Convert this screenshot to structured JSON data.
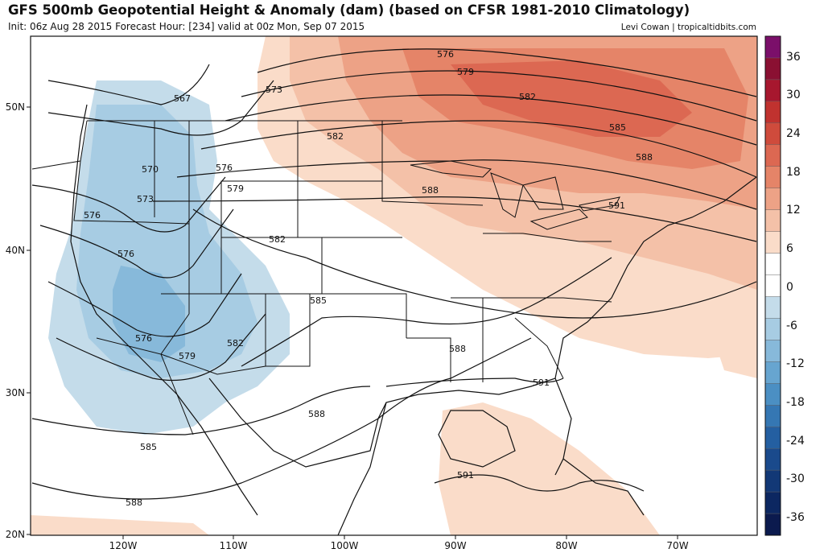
{
  "header": {
    "title": "GFS 500mb Geopotential Height & Anomaly (dam) (based on CFSR 1981-2010 Climatology)",
    "subtitle": "Init: 06z Aug 28 2015   Forecast Hour: [234]   valid at 00z Mon, Sep 07 2015",
    "credit": "Levi Cowan | tropicaltidbits.com"
  },
  "axes": {
    "lon_labels": [
      "120W",
      "110W",
      "100W",
      "90W",
      "80W",
      "70W"
    ],
    "lat_labels": [
      "50N",
      "40N",
      "30N",
      "20N"
    ]
  },
  "colorbar": {
    "labels": [
      "36",
      "30",
      "24",
      "18",
      "12",
      "6",
      "0",
      "-6",
      "-12",
      "-18",
      "-24",
      "-30",
      "-36"
    ],
    "colors": [
      "#7b0f6a",
      "#8a1032",
      "#a7172e",
      "#c0322f",
      "#cf4b3c",
      "#dc6852",
      "#e58468",
      "#eda286",
      "#f4c1a8",
      "#fadcc9",
      "#ffffff",
      "#ffffff",
      "#c4dcea",
      "#a7cce3",
      "#87b9da",
      "#67a5d0",
      "#4b8fc3",
      "#3577b3",
      "#245fa1",
      "#1a4a8c",
      "#123876",
      "#0c2761",
      "#0b1a4e"
    ]
  },
  "contour_labels": [
    {
      "text": "576"
    },
    {
      "text": "579"
    },
    {
      "text": "582"
    },
    {
      "text": "585"
    },
    {
      "text": "588"
    },
    {
      "text": "573"
    },
    {
      "text": "567"
    },
    {
      "text": "582"
    },
    {
      "text": "570"
    },
    {
      "text": "576"
    },
    {
      "text": "573"
    },
    {
      "text": "579"
    },
    {
      "text": "576"
    },
    {
      "text": "588"
    },
    {
      "text": "591"
    },
    {
      "text": "582"
    },
    {
      "text": "576"
    },
    {
      "text": "585"
    },
    {
      "text": "576"
    },
    {
      "text": "579"
    },
    {
      "text": "582"
    },
    {
      "text": "588"
    },
    {
      "text": "591"
    },
    {
      "text": "588"
    },
    {
      "text": "585"
    },
    {
      "text": "591"
    },
    {
      "text": "588"
    }
  ]
}
